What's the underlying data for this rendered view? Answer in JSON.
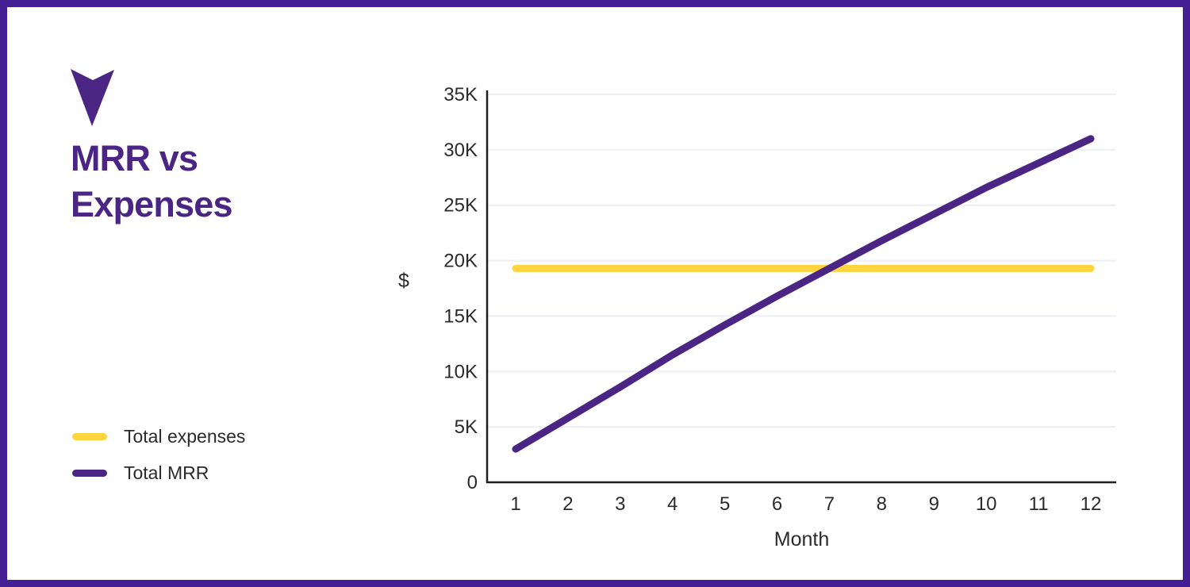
{
  "header": {
    "title_line1": "MRR vs",
    "title_line2": "Expenses",
    "title_full": "MRR vs Expenses"
  },
  "branding": {
    "icon": "arrow-down"
  },
  "legend": {
    "items": [
      {
        "label": "Total expenses",
        "color": "#FFD43E"
      },
      {
        "label": "Total MRR",
        "color": "#4A2583"
      }
    ]
  },
  "colors": {
    "purple": "#4A2583",
    "yellow": "#FFD43E",
    "border": "#441E93",
    "grid": "#EEEFF5",
    "axis": "#1F1F1F",
    "text": "#2B2B2B"
  },
  "chart_data": {
    "type": "line",
    "title": "MRR vs Expenses",
    "xlabel": "Month",
    "ylabel": "$",
    "categories": [
      "1",
      "2",
      "3",
      "4",
      "5",
      "6",
      "7",
      "8",
      "9",
      "10",
      "11",
      "12"
    ],
    "ylim": [
      0,
      35000
    ],
    "y_ticks": {
      "labels": [
        "0",
        "5K",
        "10K",
        "15K",
        "20K",
        "25K",
        "30K",
        "35K"
      ],
      "values": [
        0,
        5000,
        10000,
        15000,
        20000,
        25000,
        30000,
        35000
      ]
    },
    "grid": "horizontal",
    "legend_position": "left",
    "series": [
      {
        "name": "Total expenses",
        "color": "#FFD43E",
        "values": [
          19300,
          19300,
          19300,
          19300,
          19300,
          19300,
          19300,
          19300,
          19300,
          19300,
          19300,
          19300
        ]
      },
      {
        "name": "Total MRR",
        "color": "#4A2583",
        "values": [
          3000,
          5800,
          8600,
          11500,
          14200,
          16800,
          19300,
          21800,
          24200,
          26600,
          28800,
          31000
        ]
      }
    ]
  }
}
